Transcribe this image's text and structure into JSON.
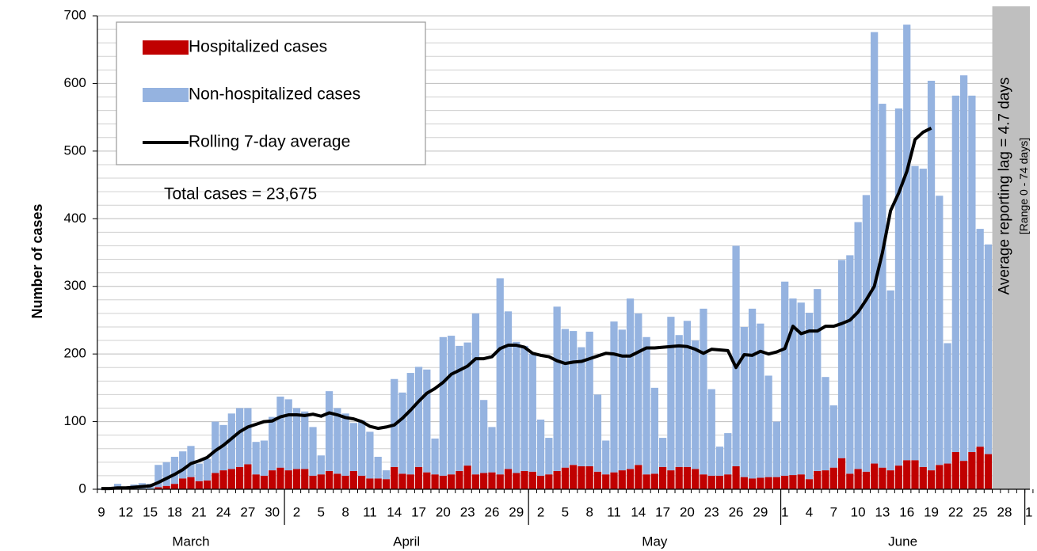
{
  "chart_data": {
    "type": "bar",
    "stacked": true,
    "y_label": "Number of cases",
    "annotations": [
      "Total cases = 23,675",
      "Average reporting lag = 4.7 days",
      "[Range 0 - 74 days]"
    ],
    "legend": "upper left",
    "grid": true,
    "ylim": [
      0,
      700
    ],
    "yticks": [
      0,
      100,
      200,
      300,
      400,
      500,
      600,
      700
    ],
    "minor_yticks": [
      20,
      40,
      60,
      80,
      120,
      140,
      160,
      180,
      220,
      240,
      260,
      280,
      320,
      340,
      360,
      380,
      420,
      440,
      460,
      480,
      520,
      540,
      560,
      580,
      620,
      640,
      660,
      680
    ],
    "months": [
      "March",
      "April",
      "May",
      "June"
    ],
    "categories": [
      "9",
      null,
      null,
      "12",
      null,
      null,
      "15",
      null,
      null,
      "18",
      null,
      null,
      "21",
      null,
      null,
      "24",
      null,
      null,
      "27",
      null,
      null,
      "30",
      null,
      null,
      "2",
      null,
      null,
      "5",
      null,
      null,
      "8",
      null,
      null,
      "11",
      null,
      null,
      "14",
      null,
      null,
      "17",
      null,
      null,
      "20",
      null,
      null,
      "23",
      null,
      null,
      "26",
      null,
      null,
      "29",
      null,
      null,
      "2",
      null,
      null,
      "5",
      null,
      null,
      "8",
      null,
      null,
      "11",
      null,
      null,
      "14",
      null,
      null,
      "17",
      null,
      null,
      "20",
      null,
      null,
      "23",
      null,
      null,
      "26",
      null,
      null,
      "29",
      null,
      null,
      "1",
      null,
      null,
      "4",
      null,
      null,
      "7",
      null,
      null,
      "10",
      null,
      null,
      "13",
      null,
      null,
      "16",
      null,
      null,
      "19",
      null,
      null,
      "22",
      null,
      null,
      "25",
      null,
      null,
      "28",
      null,
      null,
      "1"
    ],
    "series": [
      {
        "name": "Hospitalized cases",
        "color": "#c00000",
        "type": "bar",
        "values": [
          0,
          0,
          0,
          0,
          0,
          0,
          0,
          3,
          5,
          8,
          16,
          18,
          12,
          13,
          24,
          28,
          30,
          33,
          37,
          22,
          20,
          28,
          32,
          28,
          30,
          30,
          20,
          22,
          27,
          23,
          20,
          27,
          20,
          16,
          16,
          15,
          33,
          23,
          22,
          33,
          25,
          22,
          20,
          22,
          27,
          35,
          22,
          24,
          25,
          22,
          30,
          24,
          27,
          26,
          20,
          22,
          27,
          32,
          36,
          34,
          34,
          26,
          22,
          25,
          28,
          30,
          36,
          22,
          23,
          33,
          28,
          33,
          33,
          30,
          22,
          20,
          20,
          22,
          34,
          18,
          16,
          17,
          18,
          18,
          20,
          21,
          22,
          15,
          27,
          28,
          32,
          46,
          23,
          30,
          26,
          38,
          32,
          28,
          35,
          43,
          43,
          33,
          28,
          36,
          38,
          55,
          42,
          55,
          63,
          52,
          null,
          null,
          null,
          null,
          null
        ]
      },
      {
        "name": "Non-hospitalized cases",
        "color": "#95b3e0",
        "type": "bar",
        "values": [
          1,
          0,
          8,
          3,
          7,
          9,
          8,
          33,
          35,
          40,
          40,
          46,
          26,
          32,
          76,
          67,
          82,
          87,
          83,
          48,
          52,
          79,
          105,
          105,
          90,
          85,
          72,
          28,
          118,
          97,
          92,
          71,
          82,
          69,
          32,
          13,
          130,
          120,
          150,
          148,
          152,
          53,
          205,
          205,
          185,
          182,
          238,
          108,
          67,
          290,
          233,
          194,
          185,
          174,
          83,
          54,
          243,
          205,
          198,
          176,
          199,
          114,
          50,
          223,
          208,
          252,
          224,
          203,
          127,
          43,
          227,
          195,
          216,
          190,
          245,
          128,
          43,
          61,
          326,
          222,
          251,
          228,
          150,
          82,
          287,
          261,
          254,
          246,
          269,
          138,
          92,
          293,
          323,
          365,
          409,
          638,
          538,
          266,
          528,
          644,
          435,
          441,
          576,
          398,
          178,
          527,
          570,
          527,
          322,
          310,
          null,
          null,
          null,
          null,
          null
        ]
      },
      {
        "name": "Rolling 7-day average",
        "color": "#000000",
        "type": "line",
        "values": [
          1,
          1,
          2,
          2,
          3,
          4,
          5,
          10,
          16,
          22,
          29,
          38,
          42,
          47,
          57,
          65,
          75,
          85,
          92,
          96,
          100,
          101,
          107,
          110,
          110,
          109,
          111,
          108,
          113,
          110,
          106,
          104,
          100,
          93,
          90,
          92,
          95,
          105,
          117,
          130,
          142,
          149,
          158,
          170,
          176,
          182,
          193,
          193,
          196,
          208,
          213,
          213,
          210,
          201,
          198,
          196,
          190,
          186,
          188,
          189,
          193,
          197,
          201,
          200,
          197,
          197,
          203,
          209,
          209,
          210,
          211,
          212,
          211,
          207,
          201,
          207,
          206,
          205,
          180,
          199,
          198,
          204,
          200,
          203,
          208,
          241,
          230,
          234,
          234,
          241,
          241,
          245,
          250,
          262,
          280,
          300,
          350,
          412,
          438,
          470,
          517,
          528,
          534,
          null,
          null,
          null,
          null,
          null,
          null,
          null,
          null,
          null,
          null,
          null,
          null
        ]
      }
    ]
  }
}
